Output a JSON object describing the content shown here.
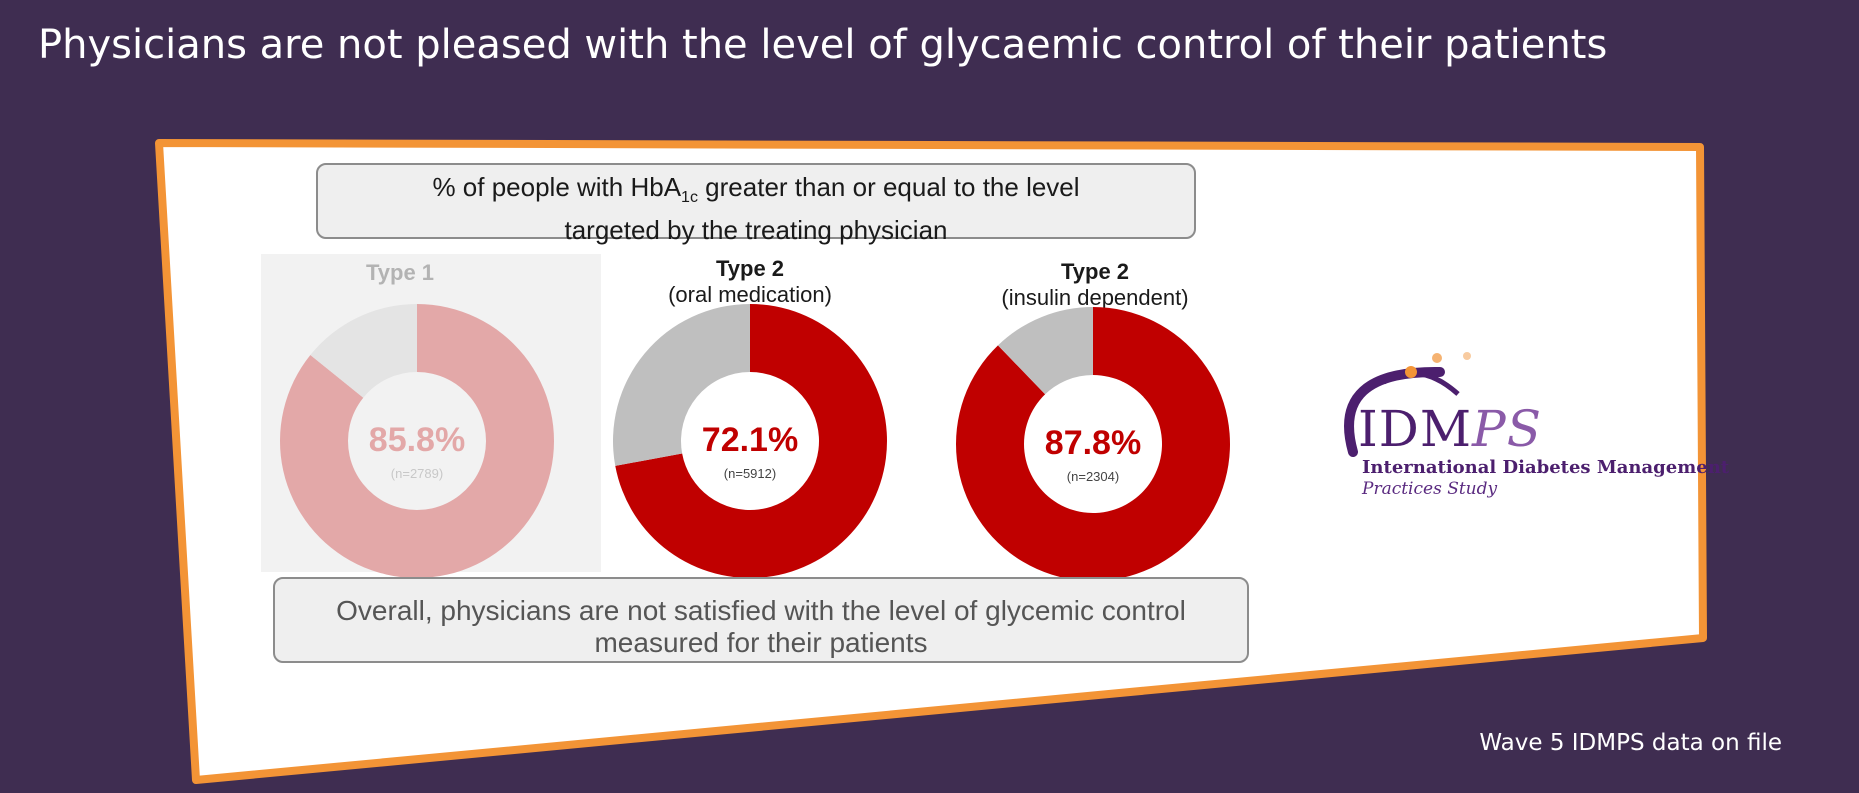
{
  "slide": {
    "title": "Physicians are not pleased with the level of glycaemic control of their patients",
    "source_note": "Wave 5 IDMPS data on file"
  },
  "panel": {
    "heading_pre": "% of people with HbA",
    "heading_sub": "1c",
    "heading_post": " greater than or equal to the level",
    "heading_line2": "targeted by the treating physician",
    "footer": "Overall, physicians are not satisfied with the level of glycemic control measured for their patients"
  },
  "logo": {
    "main": "IDM",
    "main_italic": "PS",
    "line1": "International Diabetes Management",
    "line2": "Practices Study"
  },
  "colors": {
    "background": "#3f2d51",
    "border_accent": "#f39436",
    "red": "#c00000",
    "grey": "#bfbfbf",
    "faded_red": "#e3a8a8",
    "faded_grey": "#e4e4e4"
  },
  "chart_data": {
    "type": "pie",
    "charts": [
      {
        "title": "Type 1",
        "subtitle": "",
        "value_label": "85.8%",
        "value": 85.8,
        "n_label": "(n=2789)",
        "faded": true
      },
      {
        "title": "Type 2",
        "subtitle": "(oral medication)",
        "value_label": "72.1%",
        "value": 72.1,
        "n_label": "(n=5912)",
        "faded": false
      },
      {
        "title": "Type 2",
        "subtitle": "(insulin dependent)",
        "value_label": "87.8%",
        "value": 87.8,
        "n_label": "(n=2304)",
        "faded": false
      }
    ]
  }
}
